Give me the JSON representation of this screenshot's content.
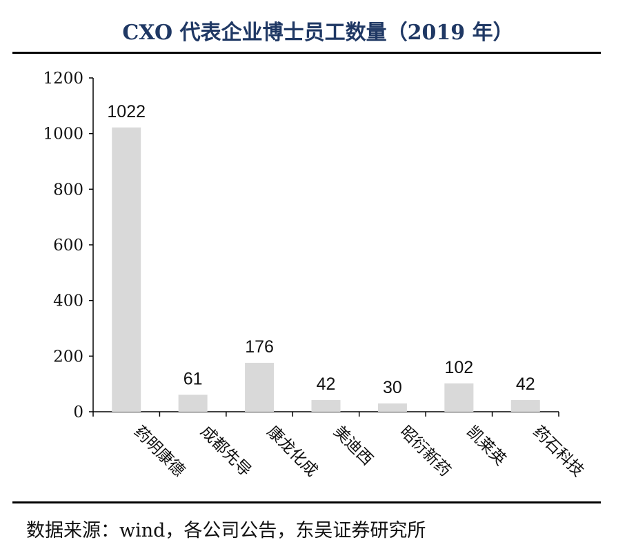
{
  "header": {
    "title": "CXO 代表企业博士员工数量（2019 年）"
  },
  "footer": {
    "source": "数据来源：wind，各公司公告，东吴证券研究所"
  },
  "chart_data": {
    "type": "bar",
    "categories": [
      "药明康德",
      "成都先导",
      "康龙化成",
      "美迪西",
      "昭衍新药",
      "凯莱英",
      "药石科技"
    ],
    "values": [
      1022,
      61,
      176,
      42,
      30,
      102,
      42
    ],
    "data_labels": [
      "1022",
      "61",
      "176",
      "42",
      "30",
      "102",
      "42"
    ],
    "ylim": [
      0,
      1200
    ],
    "yticks": [
      0,
      200,
      400,
      600,
      800,
      1000,
      1200
    ],
    "bar_color": "#d9d9d9",
    "grid": false,
    "legend": "none"
  }
}
